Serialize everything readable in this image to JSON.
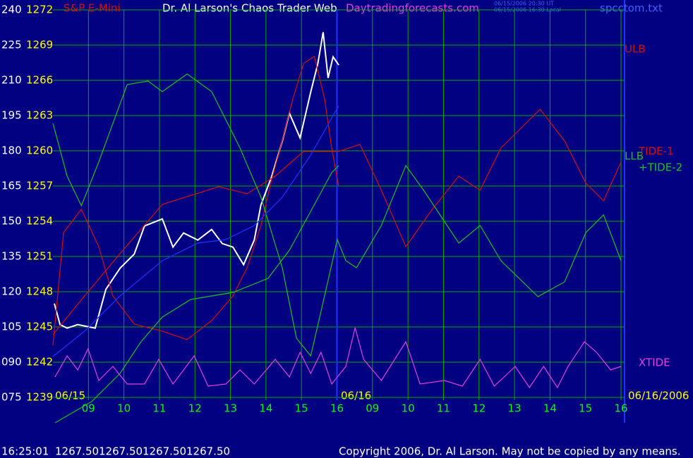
{
  "chart_data": {
    "type": "line",
    "title": "Dr. Al Larson's Chaos Trader Web",
    "site_link": "Daytradingforecasts.com",
    "timestamps": [
      "06/15/2006 20:30 UT",
      "06/15/2006 16:30 Local"
    ],
    "file_name": "spcctom.txt",
    "date_labels": [
      "06/15",
      "06/16",
      "06/16/2006"
    ],
    "status_line": [
      "16:25:01",
      "1267.50",
      "1267.50",
      "1267.50",
      "1267.50"
    ],
    "copyright": "Copyright 2006, Dr. Al Larson. May not be copied by any means.",
    "grid": true,
    "xlim": [
      0,
      16
    ],
    "xticks": [
      {
        "value": 1,
        "label": "09"
      },
      {
        "value": 2,
        "label": "10"
      },
      {
        "value": 3,
        "label": "11"
      },
      {
        "value": 4,
        "label": "12"
      },
      {
        "value": 5,
        "label": "13"
      },
      {
        "value": 6,
        "label": "14"
      },
      {
        "value": 7,
        "label": "15"
      },
      {
        "value": 8,
        "label": "16"
      },
      {
        "value": 9,
        "label": "09"
      },
      {
        "value": 10,
        "label": "10"
      },
      {
        "value": 11,
        "label": "11"
      },
      {
        "value": 12,
        "label": "12"
      },
      {
        "value": 13,
        "label": "13"
      },
      {
        "value": 14,
        "label": "14"
      },
      {
        "value": 15,
        "label": "15"
      },
      {
        "value": 16,
        "label": "16"
      }
    ],
    "ylim": [
      75,
      240
    ],
    "yticks": [
      {
        "value": 75,
        "label": "075"
      },
      {
        "value": 90,
        "label": "090"
      },
      105,
      120,
      135,
      150,
      165,
      180,
      195,
      210,
      225,
      240
    ],
    "y2lim": [
      1239,
      1272
    ],
    "y2ticks": [
      1239,
      1242,
      1245,
      1248,
      1251,
      1254,
      1257,
      1260,
      1263,
      1266,
      1269,
      1272
    ],
    "series": [
      {
        "name": "S&P E-Mini",
        "color": "#ffffff",
        "axis": "y2",
        "x": [
          0.04,
          0.2,
          0.4,
          0.7,
          1.19,
          1.49,
          1.89,
          2.29,
          2.58,
          3.08,
          3.38,
          3.68,
          4.08,
          4.47,
          4.77,
          5.07,
          5.37,
          5.67,
          5.86,
          6.16,
          6.46,
          6.66,
          6.96,
          7.26,
          7.46,
          7.61,
          7.75,
          7.89,
          8.05
        ],
        "values": [
          1247.0,
          1245.2,
          1244.9,
          1245.2,
          1244.9,
          1248.2,
          1250.0,
          1251.2,
          1253.6,
          1254.2,
          1251.8,
          1253.0,
          1252.4,
          1253.3,
          1252.1,
          1251.8,
          1250.3,
          1252.4,
          1255.4,
          1257.8,
          1260.8,
          1263.2,
          1261.1,
          1265.0,
          1267.4,
          1270.1,
          1266.2,
          1268.0,
          1267.3
        ]
      },
      {
        "name": "ULB",
        "color": "#d01010",
        "x": [
          0,
          0.3,
          0.8,
          1.29,
          1.69,
          2.29,
          3.08,
          3.78,
          4.47,
          5.07,
          5.47,
          5.86,
          6.16,
          6.46,
          6.76,
          7.06,
          7.36,
          7.65,
          7.85,
          8.05
        ],
        "values": [
          97.2,
          145.2,
          155.1,
          139.2,
          118.2,
          106.2,
          103.2,
          99.6,
          107.7,
          118.2,
          130.2,
          148.2,
          167.7,
          184.2,
          202.2,
          217.2,
          220.2,
          202.2,
          181.2,
          164.7
        ]
      },
      {
        "name": "LLB",
        "color": "#20c020",
        "x": [
          0.06,
          1.09,
          1.89,
          2.48,
          3.08,
          3.88,
          5.07,
          6.06,
          6.66,
          7.26,
          7.85,
          8.05
        ],
        "values": [
          64.2,
          73.2,
          85.2,
          98.7,
          109.2,
          116.7,
          119.7,
          125.7,
          137.7,
          154.2,
          170.7,
          173.7
        ]
      },
      {
        "name": "TIDE-1",
        "color": "#d01010",
        "x": [
          0,
          0.89,
          1.89,
          3.08,
          4.67,
          5.47,
          6.26,
          7.06,
          8.05,
          8.65,
          9.25,
          9.94,
          10.64,
          11.43,
          12.03,
          12.62,
          13.22,
          13.72,
          14.41,
          15.01,
          15.51,
          16.0
        ],
        "values": [
          101.7,
          118.2,
          136.2,
          157.2,
          164.7,
          161.7,
          169.2,
          179.7,
          179.7,
          182.7,
          163.2,
          139.2,
          154.2,
          169.2,
          163.2,
          181.2,
          190.2,
          197.7,
          184.2,
          166.2,
          158.7,
          175.2
        ]
      },
      {
        "name": "+TIDE-2",
        "color": "#20c020",
        "x": [
          0,
          0.4,
          0.8,
          1.29,
          2.09,
          2.68,
          3.08,
          3.78,
          4.47,
          5.27,
          5.86,
          6.46,
          6.86,
          7.26,
          7.65,
          8.01,
          8.25,
          8.55,
          9.25,
          9.94,
          10.44,
          11.43,
          12.03,
          12.62,
          13.66,
          14.41,
          15.01,
          15.51,
          16.0
        ],
        "values": [
          191.7,
          169.2,
          156.6,
          175.2,
          208.2,
          209.7,
          205.2,
          212.7,
          205.2,
          181.2,
          160.2,
          130.2,
          100.2,
          92.7,
          118.2,
          142.2,
          133.2,
          130.2,
          148.2,
          173.7,
          163.2,
          140.7,
          148.2,
          133.2,
          117.9,
          124.2,
          145.2,
          152.7,
          133.2
        ]
      },
      {
        "name": "XTIDE",
        "color": "#e040e0",
        "x": [
          0.06,
          0.4,
          0.7,
          0.99,
          1.29,
          1.69,
          2.09,
          2.58,
          2.98,
          3.38,
          3.98,
          4.37,
          4.87,
          5.27,
          5.67,
          6.26,
          6.66,
          6.96,
          7.26,
          7.55,
          7.85,
          8.25,
          8.51,
          8.75,
          9.25,
          9.94,
          10.34,
          11.03,
          11.53,
          12.03,
          12.43,
          13.02,
          13.42,
          13.82,
          14.21,
          14.51,
          14.97,
          15.31,
          15.71,
          16.0
        ],
        "values": [
          83.7,
          92.7,
          86.7,
          95.7,
          82.2,
          88.2,
          80.7,
          80.7,
          91.2,
          80.7,
          92.7,
          79.8,
          80.7,
          86.7,
          80.7,
          91.2,
          83.7,
          94.2,
          85.2,
          94.2,
          80.7,
          88.2,
          104.7,
          91.2,
          82.2,
          98.7,
          80.7,
          82.2,
          79.8,
          91.2,
          79.8,
          88.2,
          79.2,
          88.2,
          79.2,
          88.2,
          98.7,
          94.2,
          86.7,
          88.2
        ]
      },
      {
        "color": "#2030ff",
        "x": [
          0,
          0.89,
          1.89,
          3.08,
          4.08,
          4.87,
          5.67,
          6.46,
          7.26,
          8.05
        ],
        "values": [
          92.4,
          103.2,
          118.2,
          133.2,
          140.7,
          142.2,
          148.2,
          160.2,
          178.2,
          199.2
        ]
      }
    ]
  }
}
